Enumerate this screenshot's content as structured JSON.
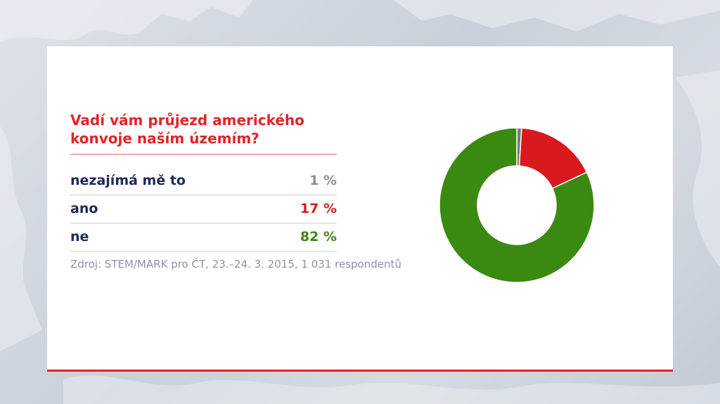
{
  "question": "Vadí vám průjezd amerického konvoje naším územím?",
  "rows": [
    {
      "label": "nezajímá mě to",
      "value": "1 %",
      "color": "#8e8e8e"
    },
    {
      "label": "ano",
      "value": "17 %",
      "color": "#d81a1f"
    },
    {
      "label": "ne",
      "value": "82 %",
      "color": "#3a8a12"
    }
  ],
  "source": "Zdroj: STEM/MARK pro ČT, 23.–24. 3. 2015, 1 031 respondentů",
  "colors": {
    "accent": "#e2232a",
    "label_text": "#1b2a5c",
    "source_text": "#8a93a3"
  },
  "chart_data": {
    "type": "pie",
    "donut": true,
    "categories": [
      "nezajímá mě to",
      "ano",
      "ne"
    ],
    "values": [
      1,
      17,
      82
    ],
    "colors": [
      "#7a7a7a",
      "#d81a1f",
      "#3a8a12"
    ],
    "unit": "%"
  }
}
